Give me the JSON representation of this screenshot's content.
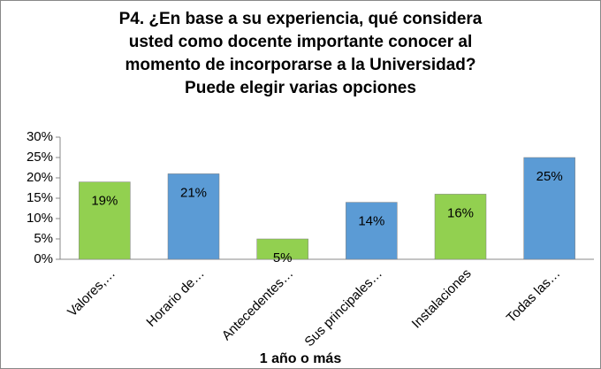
{
  "chart_data": {
    "type": "bar",
    "title": [
      "P4. ¿En base a su experiencia, qué considera",
      "usted como docente importante conocer al",
      "momento de incorporarse a la Universidad?",
      "Puede elegir varias opciones"
    ],
    "x_label": "1 año o más",
    "categories": [
      "Valores,…",
      "Horario de…",
      "Antecedentes…",
      "Sus principales…",
      "Instalaciones",
      "Todas las…"
    ],
    "values": [
      19,
      21,
      5,
      14,
      16,
      25
    ],
    "value_labels": [
      "19%",
      "21%",
      "5%",
      "14%",
      "16%",
      "25%"
    ],
    "colors": [
      "#92d050",
      "#5b9bd5",
      "#92d050",
      "#5b9bd5",
      "#92d050",
      "#5b9bd5"
    ],
    "ylim": [
      0,
      30
    ],
    "yticks": [
      {
        "value": 0,
        "label": "0%"
      },
      {
        "value": 5,
        "label": "5%"
      },
      {
        "value": 10,
        "label": "10%"
      },
      {
        "value": 15,
        "label": "15%"
      },
      {
        "value": 20,
        "label": "20%"
      },
      {
        "value": 25,
        "label": "25%"
      },
      {
        "value": 30,
        "label": "30%"
      }
    ],
    "grid": false
  }
}
